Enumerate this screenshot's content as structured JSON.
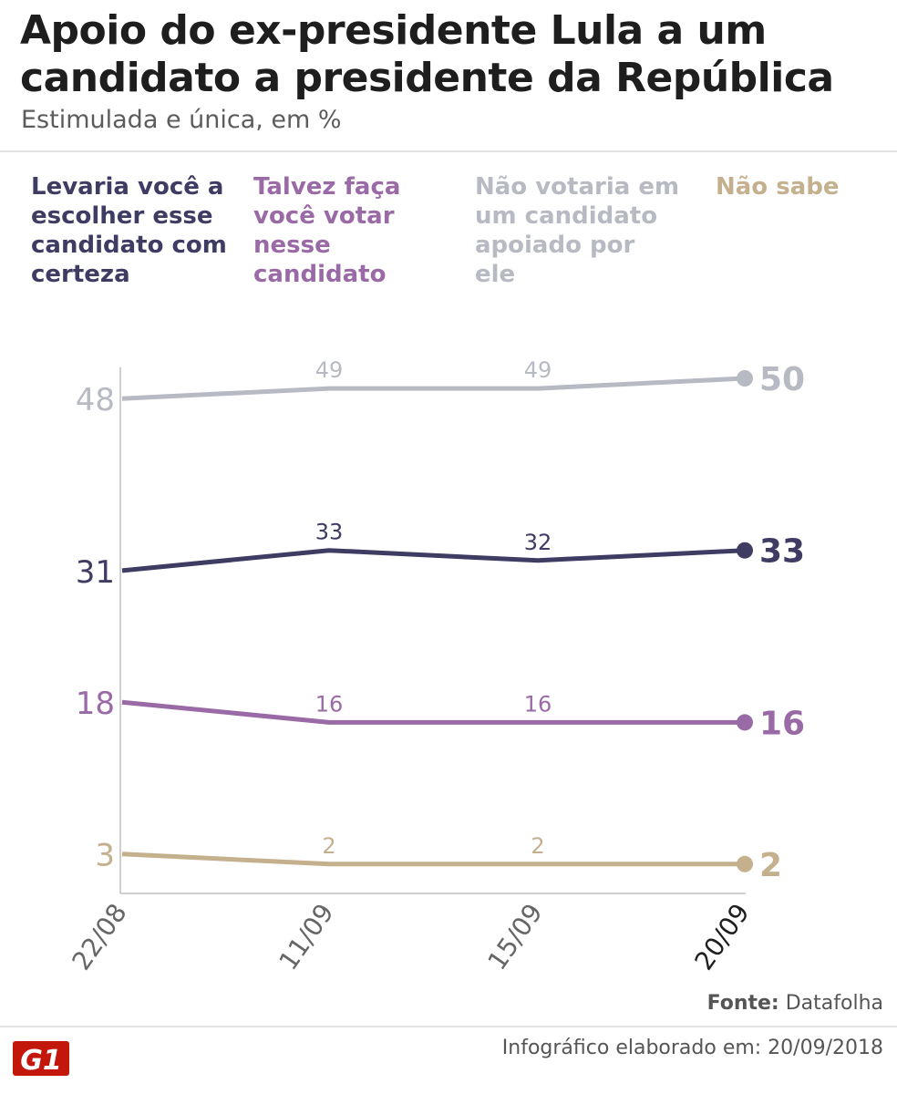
{
  "title": "Apoio do ex-presidente Lula a um candidato a presidente da República",
  "subtitle": "Estimulada e única, em %",
  "legend": [
    {
      "label": "Levaria você a escolher esse candidato com certeza",
      "color": "#3f3c63"
    },
    {
      "label": "Talvez faça você votar nesse candidato",
      "color": "#9a6aa6"
    },
    {
      "label": "Não votaria em um candidato apoiado por ele",
      "color": "#b7bac3"
    },
    {
      "label": "Não sabe",
      "color": "#c5b08e"
    }
  ],
  "chart_data": {
    "type": "line",
    "title": "Apoio do ex-presidente Lula a um candidato a presidente da República",
    "subtitle": "Estimulada e única, em %",
    "categories": [
      "22/08",
      "11/09",
      "15/09",
      "20/09"
    ],
    "series": [
      {
        "name": "Não votaria em um candidato apoiado por ele",
        "values": [
          48,
          49,
          49,
          50
        ],
        "color": "#b7bac3"
      },
      {
        "name": "Levaria você a escolher esse candidato com certeza",
        "values": [
          31,
          33,
          32,
          33
        ],
        "color": "#3f3c63"
      },
      {
        "name": "Talvez faça você votar nesse candidato",
        "values": [
          18,
          16,
          16,
          16
        ],
        "color": "#9a6aa6"
      },
      {
        "name": "Não sabe",
        "values": [
          3,
          2,
          2,
          2
        ],
        "color": "#c5b08e"
      }
    ],
    "ylim": [
      0,
      52
    ],
    "xlabel": "",
    "ylabel": ""
  },
  "footer": {
    "source_label": "Fonte:",
    "source_value": "Datafolha",
    "credit": "Infográfico elaborado em: 20/09/2018",
    "logo_text": "G1",
    "logo_color": "#c4170c"
  }
}
